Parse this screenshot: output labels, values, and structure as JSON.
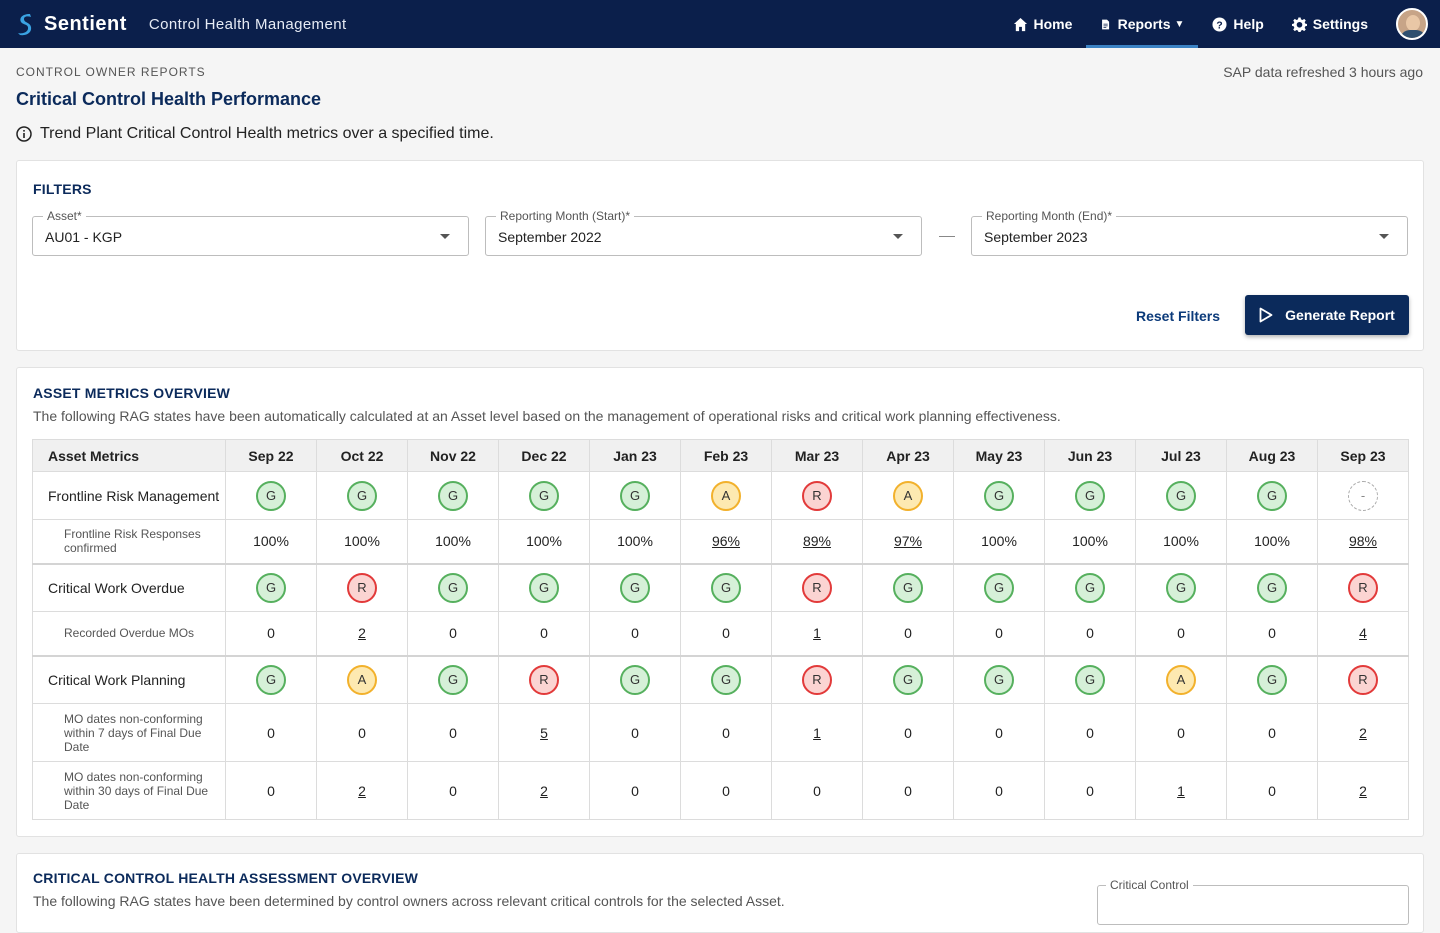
{
  "app": {
    "brand": "Sentient",
    "name": "Control Health Management"
  },
  "nav": {
    "home": "Home",
    "reports": "Reports",
    "help": "Help",
    "settings": "Settings"
  },
  "header": {
    "breadcrumb": "CONTROL OWNER REPORTS",
    "refresh": "SAP data refreshed 3 hours ago",
    "title": "Critical Control Health Performance",
    "description": "Trend Plant Critical Control Health metrics over a specified time."
  },
  "filters": {
    "title": "FILTERS",
    "asset": {
      "label": "Asset*",
      "value": "AU01 - KGP"
    },
    "start": {
      "label": "Reporting Month (Start)*",
      "value": "September 2022"
    },
    "end": {
      "label": "Reporting Month (End)*",
      "value": "September 2023"
    },
    "reset_label": "Reset Filters",
    "generate_label": "Generate Report"
  },
  "metrics": {
    "title": "ASSET METRICS OVERVIEW",
    "subtitle": "The following RAG states have been automatically calculated at an Asset level based on the management of operational risks and critical work planning effectiveness.",
    "first_col": "Asset Metrics",
    "months": [
      "Sep 22",
      "Oct 22",
      "Nov 22",
      "Dec 22",
      "Jan 23",
      "Feb 23",
      "Mar 23",
      "Apr 23",
      "May 23",
      "Jun 23",
      "Jul 23",
      "Aug 23",
      "Sep 23"
    ],
    "rows": [
      {
        "type": "rag",
        "label": "Frontline Risk Management",
        "group_start": false,
        "values": [
          "G",
          "G",
          "G",
          "G",
          "G",
          "A",
          "R",
          "A",
          "G",
          "G",
          "G",
          "G",
          "-"
        ]
      },
      {
        "type": "num",
        "label": "Frontline Risk Responses confirmed",
        "values": [
          "100%",
          "100%",
          "100%",
          "100%",
          "100%",
          "96%",
          "89%",
          "97%",
          "100%",
          "100%",
          "100%",
          "100%",
          "98%"
        ],
        "links": [
          false,
          false,
          false,
          false,
          false,
          true,
          true,
          true,
          false,
          false,
          false,
          false,
          true
        ]
      },
      {
        "type": "rag",
        "label": "Critical Work Overdue",
        "group_start": true,
        "values": [
          "G",
          "R",
          "G",
          "G",
          "G",
          "G",
          "R",
          "G",
          "G",
          "G",
          "G",
          "G",
          "R"
        ]
      },
      {
        "type": "num",
        "label": "Recorded Overdue MOs",
        "values": [
          "0",
          "2",
          "0",
          "0",
          "0",
          "0",
          "1",
          "0",
          "0",
          "0",
          "0",
          "0",
          "4"
        ],
        "links": [
          false,
          true,
          false,
          false,
          false,
          false,
          true,
          false,
          false,
          false,
          false,
          false,
          true
        ]
      },
      {
        "type": "rag",
        "label": "Critical Work Planning",
        "group_start": true,
        "values": [
          "G",
          "A",
          "G",
          "R",
          "G",
          "G",
          "R",
          "G",
          "G",
          "G",
          "A",
          "G",
          "R"
        ]
      },
      {
        "type": "num",
        "label": "MO dates non-conforming within 7 days of Final Due Date",
        "values": [
          "0",
          "0",
          "0",
          "5",
          "0",
          "0",
          "1",
          "0",
          "0",
          "0",
          "0",
          "0",
          "2"
        ],
        "links": [
          false,
          false,
          false,
          true,
          false,
          false,
          true,
          false,
          false,
          false,
          false,
          false,
          true
        ]
      },
      {
        "type": "num",
        "label": "MO dates non-conforming within 30 days of Final Due Date",
        "values": [
          "0",
          "2",
          "0",
          "2",
          "0",
          "0",
          "0",
          "0",
          "0",
          "0",
          "1",
          "0",
          "2"
        ],
        "links": [
          false,
          true,
          false,
          true,
          false,
          false,
          false,
          false,
          false,
          false,
          true,
          false,
          true
        ]
      }
    ]
  },
  "assessment": {
    "title": "CRITICAL CONTROL HEALTH ASSESSMENT OVERVIEW",
    "subtitle": "The following RAG states have been determined by control owners across relevant critical controls for the selected Asset.",
    "critical_control_label": "Critical Control"
  }
}
